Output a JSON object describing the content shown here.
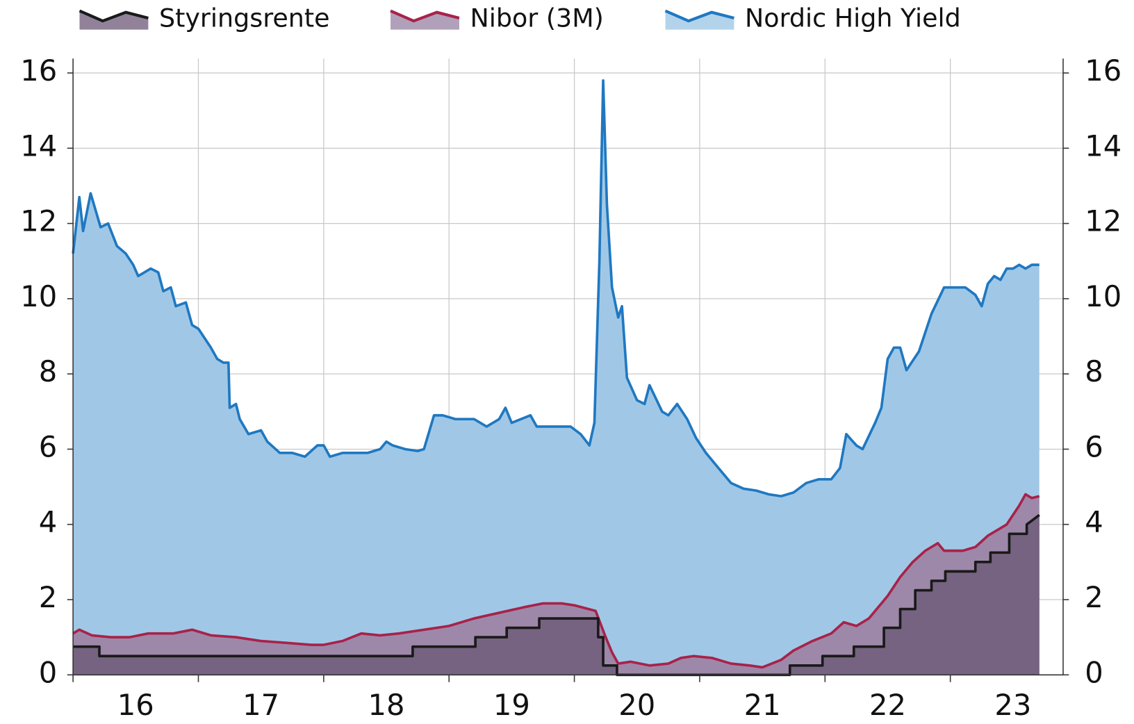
{
  "chart_data": {
    "type": "area",
    "x_label_position": "between",
    "xlim": [
      16,
      23.9
    ],
    "xticks": [
      16,
      17,
      18,
      19,
      20,
      21,
      22,
      23
    ],
    "ylim": [
      0,
      16
    ],
    "yticks": [
      0,
      2,
      4,
      6,
      8,
      10,
      12,
      14,
      16
    ],
    "y2lim": [
      0,
      16
    ],
    "y2ticks": [
      0,
      2,
      4,
      6,
      8,
      10,
      12,
      14,
      16
    ],
    "grid": true,
    "legend": "top",
    "series": [
      {
        "name": "Nordic High Yield",
        "color": "#1f78c1",
        "fill": "#a0c8e6",
        "x": [
          16.0,
          16.05,
          16.08,
          16.14,
          16.22,
          16.28,
          16.35,
          16.42,
          16.48,
          16.52,
          16.62,
          16.68,
          16.72,
          16.78,
          16.82,
          16.9,
          16.95,
          17.0,
          17.1,
          17.15,
          17.2,
          17.24,
          17.25,
          17.3,
          17.33,
          17.4,
          17.5,
          17.55,
          17.65,
          17.75,
          17.85,
          17.95,
          18.0,
          18.05,
          18.15,
          18.25,
          18.35,
          18.45,
          18.5,
          18.55,
          18.65,
          18.75,
          18.8,
          18.88,
          18.95,
          19.05,
          19.2,
          19.3,
          19.4,
          19.45,
          19.5,
          19.65,
          19.7,
          19.85,
          19.97,
          20.05,
          20.12,
          20.16,
          20.2,
          20.23,
          20.26,
          20.3,
          20.35,
          20.38,
          20.42,
          20.5,
          20.56,
          20.6,
          20.7,
          20.75,
          20.82,
          20.9,
          20.97,
          21.05,
          21.15,
          21.25,
          21.35,
          21.45,
          21.55,
          21.65,
          21.75,
          21.85,
          21.95,
          22.05,
          22.12,
          22.17,
          22.25,
          22.3,
          22.4,
          22.45,
          22.5,
          22.55,
          22.6,
          22.65,
          22.75,
          22.85,
          22.95,
          23.05,
          23.12,
          23.2,
          23.25,
          23.3,
          23.35,
          23.4,
          23.45,
          23.5,
          23.55,
          23.6,
          23.65,
          23.71
        ],
        "values": [
          11.2,
          12.7,
          11.8,
          12.8,
          11.9,
          12.0,
          11.4,
          11.2,
          10.9,
          10.6,
          10.8,
          10.7,
          10.2,
          10.3,
          9.8,
          9.9,
          9.3,
          9.2,
          8.7,
          8.4,
          8.3,
          8.3,
          7.1,
          7.2,
          6.8,
          6.4,
          6.5,
          6.2,
          5.9,
          5.9,
          5.8,
          6.1,
          6.1,
          5.8,
          5.9,
          5.9,
          5.9,
          6.0,
          6.2,
          6.1,
          6.0,
          5.95,
          6.0,
          6.9,
          6.9,
          6.8,
          6.8,
          6.6,
          6.8,
          7.1,
          6.7,
          6.9,
          6.6,
          6.6,
          6.6,
          6.4,
          6.1,
          6.7,
          11.0,
          15.8,
          12.5,
          10.3,
          9.5,
          9.8,
          7.9,
          7.3,
          7.2,
          7.7,
          7.0,
          6.9,
          7.2,
          6.8,
          6.3,
          5.9,
          5.5,
          5.1,
          4.95,
          4.9,
          4.8,
          4.75,
          4.85,
          5.1,
          5.2,
          5.2,
          5.5,
          6.4,
          6.1,
          6.0,
          6.7,
          7.1,
          8.4,
          8.7,
          8.7,
          8.1,
          8.6,
          9.6,
          10.3,
          10.3,
          10.3,
          10.1,
          9.8,
          10.4,
          10.6,
          10.5,
          10.8,
          10.8,
          10.9,
          10.8,
          10.9,
          10.9
        ]
      },
      {
        "name": "Nibor (3M)",
        "color": "#a8224a",
        "fill": "#9e88a9",
        "x": [
          16.0,
          16.05,
          16.15,
          16.3,
          16.45,
          16.6,
          16.8,
          16.95,
          17.1,
          17.3,
          17.5,
          17.7,
          17.9,
          18.0,
          18.15,
          18.3,
          18.45,
          18.6,
          18.8,
          19.0,
          19.2,
          19.4,
          19.6,
          19.75,
          19.9,
          20.0,
          20.17,
          20.25,
          20.3,
          20.35,
          20.45,
          20.6,
          20.75,
          20.85,
          20.95,
          21.1,
          21.25,
          21.4,
          21.5,
          21.65,
          21.75,
          21.9,
          22.05,
          22.15,
          22.25,
          22.35,
          22.5,
          22.6,
          22.7,
          22.8,
          22.9,
          22.95,
          23.1,
          23.2,
          23.3,
          23.45,
          23.55,
          23.6,
          23.65,
          23.71
        ],
        "values": [
          1.1,
          1.2,
          1.05,
          1.0,
          1.0,
          1.1,
          1.1,
          1.2,
          1.05,
          1.0,
          0.9,
          0.85,
          0.8,
          0.8,
          0.9,
          1.1,
          1.05,
          1.1,
          1.2,
          1.3,
          1.5,
          1.65,
          1.8,
          1.9,
          1.9,
          1.85,
          1.7,
          1.0,
          0.6,
          0.3,
          0.35,
          0.25,
          0.3,
          0.45,
          0.5,
          0.45,
          0.3,
          0.25,
          0.2,
          0.4,
          0.65,
          0.9,
          1.1,
          1.4,
          1.3,
          1.5,
          2.1,
          2.6,
          3.0,
          3.3,
          3.5,
          3.3,
          3.3,
          3.4,
          3.7,
          4.0,
          4.5,
          4.8,
          4.7,
          4.75
        ]
      },
      {
        "name": "Styringsrente",
        "color": "#1a1a1a",
        "fill": "#766381",
        "x": [
          16.0,
          16.21,
          16.21,
          18.71,
          18.71,
          19.21,
          19.21,
          19.46,
          19.46,
          19.72,
          19.72,
          20.19,
          20.19,
          20.23,
          20.23,
          20.34,
          20.34,
          21.72,
          21.72,
          21.98,
          21.98,
          22.23,
          22.23,
          22.47,
          22.47,
          22.6,
          22.6,
          22.72,
          22.72,
          22.85,
          22.85,
          22.96,
          22.96,
          23.2,
          23.2,
          23.32,
          23.32,
          23.47,
          23.47,
          23.61,
          23.61,
          23.71
        ],
        "values": [
          0.75,
          0.75,
          0.5,
          0.5,
          0.75,
          0.75,
          1.0,
          1.0,
          1.25,
          1.25,
          1.5,
          1.5,
          1.0,
          1.0,
          0.25,
          0.25,
          0,
          0,
          0.25,
          0.25,
          0.5,
          0.5,
          0.75,
          0.75,
          1.25,
          1.25,
          1.75,
          1.75,
          2.25,
          2.25,
          2.5,
          2.5,
          2.75,
          2.75,
          3.0,
          3.0,
          3.25,
          3.25,
          3.75,
          3.75,
          4.0,
          4.25
        ]
      }
    ]
  }
}
